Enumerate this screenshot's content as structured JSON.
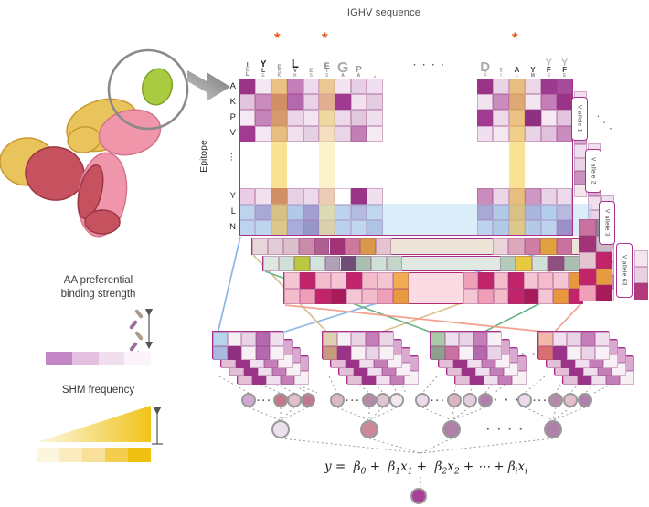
{
  "title": "IGHV sequence",
  "epitope_label": "Epitope",
  "row_labels": [
    "A",
    "K",
    "P",
    "V",
    "⋮",
    "Y",
    "L",
    "N"
  ],
  "logo": {
    "asterisk": "*",
    "asterisk_color": "#e8591c",
    "gap_dots": "· · · ·",
    "left_columns": [
      [
        {
          "c": "I",
          "s": 7,
          "col": "#555"
        },
        {
          "c": "E",
          "s": 6,
          "col": "#999"
        },
        {
          "c": "L",
          "s": 6,
          "col": "#777"
        }
      ],
      [
        {
          "c": "Y",
          "s": 10,
          "col": "#222"
        },
        {
          "c": "L",
          "s": 7,
          "col": "#555"
        },
        {
          "c": "E",
          "s": 5,
          "col": "#aaa"
        }
      ],
      [
        {
          "c": "E",
          "s": 6,
          "col": "#888"
        },
        {
          "c": "S",
          "s": 5,
          "col": "#aaa"
        },
        {
          "c": "K",
          "s": 5,
          "col": "#999"
        }
      ],
      [
        {
          "c": "L",
          "s": 13,
          "col": "#222"
        },
        {
          "c": "V",
          "s": 6,
          "col": "#666"
        },
        {
          "c": "K",
          "s": 5,
          "col": "#999"
        }
      ],
      [
        {
          "c": "E",
          "s": 6,
          "col": "#999"
        },
        {
          "c": "S",
          "s": 5,
          "col": "#aaa"
        }
      ],
      [
        {
          "c": "E",
          "s": 9,
          "col": "#777"
        },
        {
          "c": "T",
          "s": 6,
          "col": "#999"
        },
        {
          "c": "S",
          "s": 5,
          "col": "#aaa"
        }
      ],
      [
        {
          "c": "G",
          "s": 16,
          "col": "#aaa"
        },
        {
          "c": "A",
          "s": 5,
          "col": "#888"
        }
      ],
      [
        {
          "c": "P",
          "s": 10,
          "col": "#999"
        },
        {
          "c": "A",
          "s": 5,
          "col": "#888"
        }
      ],
      [
        {
          "c": "A",
          "s": 4,
          "col": "#aaa"
        }
      ]
    ],
    "right_columns": [
      [
        {
          "c": "D",
          "s": 15,
          "col": "#aaa"
        },
        {
          "c": "E",
          "s": 6,
          "col": "#999"
        }
      ],
      [
        {
          "c": "T",
          "s": 6,
          "col": "#888"
        },
        {
          "c": "I",
          "s": 5,
          "col": "#aaa"
        }
      ],
      [
        {
          "c": "A",
          "s": 8,
          "col": "#444"
        },
        {
          "c": "L",
          "s": 5,
          "col": "#999"
        }
      ],
      [
        {
          "c": "Y",
          "s": 8,
          "col": "#333"
        },
        {
          "c": "M",
          "s": 5,
          "col": "#777"
        }
      ],
      [
        {
          "c": "Y",
          "s": 11,
          "col": "#bbb"
        },
        {
          "c": "F",
          "s": 8,
          "col": "#333"
        },
        {
          "c": "E",
          "s": 5,
          "col": "#999"
        }
      ],
      [
        {
          "c": "Y",
          "s": 11,
          "col": "#bbb"
        },
        {
          "c": "F",
          "s": 8,
          "col": "#444"
        },
        {
          "c": "E",
          "s": 5,
          "col": "#999"
        }
      ]
    ]
  },
  "heatmap": {
    "left": [
      [
        "#9b3389",
        "#f4e9f2",
        "#e0b8d8",
        "#c47fb8",
        "#eedaec",
        "#d99f82",
        "#f2e3ef",
        "#e7d0e5",
        "#f0dff0"
      ],
      [
        "#e3c4df",
        "#c98cbd",
        "#a84898",
        "#b369ad",
        "#ead2e6",
        "#c4697c",
        "#a03a91",
        "#f2e2ee",
        "#e5cde1"
      ],
      [
        "#f5e9f3",
        "#c585b9",
        "#b05fa8",
        "#ead6e6",
        "#f3e5f0",
        "#e5c79f",
        "#ecd9e9",
        "#e1c9dd",
        "#f0e0ed"
      ],
      [
        "#a23a92",
        "#f3e7f1",
        "#d9aed3",
        "#f0e1ed",
        "#e5d1e1",
        "#ead6e6",
        "#e9d5e5",
        "#c17fb4",
        "#f5e9f2"
      ],
      [
        "#e9cde5",
        "#f1e1ee",
        "#a84898",
        "#e9d1e5",
        "#ecd9e9",
        "#d9aece",
        "#ffffff",
        "#9b3389",
        "#f0e0ee"
      ],
      [
        "#ccd5e9",
        "#a98bc1",
        "#b9a0d0",
        "#b9c1e1",
        "#9d79b9",
        "#c0c8b1",
        "#c9d1e9",
        "#b9a9d1",
        "#d1d9ed"
      ],
      [
        "#c9d5e9",
        "#cdd5e9",
        "#cbbcdf",
        "#a991c9",
        "#8969a9",
        "#b1a191",
        "#c5cde7",
        "#d1d9eb",
        "#b1b9d9"
      ]
    ],
    "right": [
      [
        "#9b3389",
        "#e9d4e6",
        "#d9aed3",
        "#ecd7e9",
        "#9c3a90",
        "#a84b9b"
      ],
      [
        "#f2e4ef",
        "#c98cbd",
        "#c47fb8",
        "#f3e6f0",
        "#c47fb8",
        "#9b3389"
      ],
      [
        "#a23a92",
        "#ecd9e9",
        "#e0b8d8",
        "#8f2f80",
        "#f5eaf3",
        "#e3c4df"
      ],
      [
        "#f0dfee",
        "#f3e7f1",
        "#e9d4e6",
        "#e9d4e6",
        "#e1c1dc",
        "#c98cbd"
      ],
      [
        "#c98cbd",
        "#ead6e7",
        "#d9aed3",
        "#cf97c4",
        "#e9d4e6",
        "#ecd9e9"
      ],
      [
        "#a98bc1",
        "#b9c1e1",
        "#b9a0d0",
        "#a9a1d1",
        "#b9c9e9",
        "#c1a9d1"
      ],
      [
        "#c9d1e9",
        "#b9c1e1",
        "#cbbcdf",
        "#b9c1e1",
        "#c9d1e9",
        "#8f5fa9"
      ]
    ],
    "yellow_strong": "rgba(244,203,60,0.55)",
    "yellow_light": "rgba(250,232,160,0.55)",
    "blue_band": "rgba(172,211,242,0.42)",
    "border_color": "#a8318c"
  },
  "alleles": {
    "labels": [
      "V allele 1",
      "V allele 2",
      "V allele 3",
      "V allele 63"
    ],
    "stair_dots": "· · ·",
    "strip_cells": [
      "#f0dfee",
      "#e3cfe0",
      "#f4e6ef",
      "#d9aece",
      "#f0dfee",
      "#e9d4e6",
      "#c991bd",
      "#f4e6ef"
    ],
    "allele63_block": [
      [
        "#c9719f",
        "#8a8a9a"
      ],
      [
        "#a23376",
        "#c9b9c4"
      ],
      [
        "#e3c4cf",
        "#c2246a"
      ],
      [
        "#c2246a",
        "#e89a3f"
      ],
      [
        "#ef9fb8",
        "#a81b5a"
      ]
    ],
    "allele63_side": [
      "#f4e6ef",
      "#e9d1e2",
      "#b23a7d"
    ]
  },
  "feature_rows": {
    "beige": {
      "bg": "#ece4d6",
      "left": [
        "#e8d5da",
        "#e4ccd4",
        "#dcc0cc",
        "#c98ca8",
        "#b05f93",
        "#a23376",
        "#cc7a9b",
        "#d89a49",
        "#e3c4cf"
      ],
      "right": [
        "#e9d4da",
        "#dca9bc",
        "#cf7fa3",
        "#e0a23f",
        "#c9719f"
      ]
    },
    "green": {
      "bg": "#dfe9e1",
      "left": [
        "#dce8e0",
        "#cfe0d6",
        "#b9c93f",
        "#cfe4da",
        "#b0a0b8",
        "#6f4f78",
        "#a9bfb0",
        "#cfe0d6",
        "#c4d6ca"
      ],
      "right": [
        "#b4ccbc",
        "#e8c93f",
        "#cfe0d6",
        "#8f4f7f",
        "#a9bfb0"
      ]
    },
    "pink": {
      "bg": "#fbdce4",
      "border": "#b82d6f",
      "left": [
        [
          "#f4c6d3",
          "#c2246a",
          "#f2bccb",
          "#f4c6d3",
          "#c2246a",
          "#f2bccb",
          "#f4c6d3",
          "#f0ad52"
        ],
        [
          "#f2bccb",
          "#ef9fb8",
          "#c2246a",
          "#a81b5a",
          "#f4c6d3",
          "#f2bccb",
          "#ef9fb8",
          "#e89a3f"
        ]
      ],
      "right": [
        [
          "#ef9fb8",
          "#c2246a",
          "#f2bccb",
          "#c2246a",
          "#f4c6d3",
          "#f2bccb",
          "#f4c6d3",
          "#e8973f"
        ],
        [
          "#f4c6d3",
          "#ef9fb8",
          "#f2bccb",
          "#c2246a",
          "#a81b5a",
          "#f4c6d3",
          "#e8973f",
          "#c2246a"
        ]
      ]
    }
  },
  "connectors": {
    "blue": {
      "color": "#85b5e3",
      "lines": [
        [
          263,
          259,
          238,
          366
        ],
        [
          648,
          259,
          302,
          366
        ]
      ]
    },
    "tan": {
      "color": "#dbbe8a",
      "lines": [
        [
          277,
          279,
          360,
          366
        ],
        [
          652,
          279,
          410,
          366
        ]
      ]
    },
    "green": {
      "color": "#66b07f",
      "lines": [
        [
          290,
          297,
          478,
          366
        ],
        [
          660,
          297,
          524,
          366
        ]
      ]
    },
    "salmon": {
      "color": "#f59a89",
      "lines": [
        [
          312,
          334,
          594,
          363
        ],
        [
          637,
          331,
          607,
          363
        ]
      ]
    }
  },
  "stacks": {
    "inter_dots": "· · ·",
    "back_rows": [
      [
        "#f0dfee",
        "#c9719f",
        "#f7f0f5",
        "#e9d4e6",
        "#d9a9cf"
      ],
      [
        "#e3bfd8",
        "#9b3389",
        "#f0dfee",
        "#c47fb8",
        "#f7f0f5"
      ]
    ],
    "items": [
      {
        "front": [
          [
            "#b8d4ec",
            "#f7f0f5",
            "#e9d4e6",
            "#b369ad",
            "#f0dfee"
          ],
          [
            "#a9b9e1",
            "#8f2f80",
            "#f7f0f5",
            "#b369ad",
            "#f7f0f5"
          ]
        ]
      },
      {
        "front": [
          [
            "#e0d0b2",
            "#f7f0f5",
            "#e9d4e6",
            "#c47fb8",
            "#ead6e7"
          ],
          [
            "#c79c7e",
            "#9b3389",
            "#f7f0f5",
            "#e9d4e6",
            "#f7f0f5"
          ]
        ]
      },
      {
        "front": [
          [
            "#a9c9a9",
            "#f0dfee",
            "#e9d4e6",
            "#c47fb8",
            "#f7f0f5"
          ],
          [
            "#8f9f8f",
            "#c9719f",
            "#f7f0f5",
            "#b369ad",
            "#e9d4e6"
          ]
        ]
      },
      {
        "front": [
          [
            "#f2b9a9",
            "#f0dfee",
            "#e9d4e6",
            "#c47fb8",
            "#f0dfee"
          ],
          [
            "#d96f6f",
            "#9b3389",
            "#f7f0f5",
            "#e9d4e6",
            "#f7f0f5"
          ]
        ]
      }
    ]
  },
  "network": {
    "group_dots": "···",
    "inter_group_dots": "· · ·",
    "level2_dots": "· · · ·",
    "groups": [
      {
        "circles": [
          "#cfa9cf",
          "#c4798a",
          "#e3bfca",
          "#bd7a8d"
        ],
        "pooled": "#eddfec"
      },
      {
        "circles": [
          "#dcb8c4",
          "#b48aa8",
          "#e0c4d4",
          "#f4e8f0"
        ],
        "pooled": "#cc8898"
      },
      {
        "circles": [
          "#ecd9e9",
          "#dcb4c4",
          "#e3cfe0",
          "#b080ad"
        ],
        "pooled": "#b080a8"
      },
      {
        "circles": [
          "#ecd9e9",
          "#b48aa8",
          "#e3bfca",
          "#b080ad"
        ],
        "pooled": "#b080a8"
      }
    ],
    "final_node": "#a83f98"
  },
  "equation": {
    "lhs": "y",
    "equals": "=",
    "beta": "β",
    "x": "x",
    "subs": [
      "0",
      "1",
      "2",
      "i"
    ],
    "plus": "+",
    "cdots": "⋯"
  },
  "legend": {
    "aa_label": "AA preferential\nbinding strength",
    "aa_bar": [
      "#c586c5",
      "#e3c0e0",
      "#f0dfee",
      "#faf3f9"
    ],
    "shm_label": "SHM frequency",
    "shm_bar": [
      "#fdf6df",
      "#fbecc0",
      "#f8e09a",
      "#f5cd4e",
      "#f0c011"
    ],
    "shm_triangle": {
      "from": "#fdf8e6",
      "to": "#f0c318"
    },
    "zigzag_colors": [
      "#b0998a",
      "#9a6f9a",
      "#b0998a",
      "#9a6f9a",
      "#b0998a"
    ]
  },
  "antibody_colors": {
    "yellow": "#e9c45c",
    "yellow_stroke": "#c9992f",
    "red": "#c5525e",
    "red_stroke": "#9c3644",
    "pink": "#f096aa",
    "pink_stroke": "#d4748c",
    "green": "#a8cb40",
    "green_stroke": "#7fa32e",
    "circle": "#8a8a8a",
    "arrow": "#8a8a8a"
  }
}
